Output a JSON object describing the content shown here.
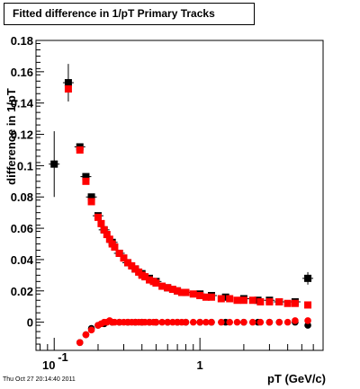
{
  "title": "Fitted difference in 1/pT  Primary Tracks",
  "timestamp": "Thu Oct 27 20:14:40 2011",
  "chart_data": {
    "type": "scatter",
    "title": "Fitted difference in 1/pT  Primary Tracks",
    "xlabel": "pT (GeV/c)",
    "ylabel": "difference in 1/pT",
    "xscale": "log",
    "xlim": [
      0.075,
      7.0
    ],
    "ylim": [
      -0.018,
      0.18
    ],
    "x_tick_labels": [
      {
        "value": 0.1,
        "base": "10",
        "exp": "-1"
      },
      {
        "value": 1,
        "text": "1"
      }
    ],
    "y_ticks": [
      0,
      0.02,
      0.04,
      0.06,
      0.08,
      0.1,
      0.12,
      0.14,
      0.16,
      0.18
    ],
    "y_tick_labels": [
      "0",
      "0.02",
      "0.04",
      "0.06",
      "0.08",
      "0.1",
      "0.12",
      "0.14",
      "0.16",
      "0.18"
    ],
    "grid": false,
    "series": [
      {
        "color": "#000000",
        "marker": "square",
        "x": [
          0.1,
          0.125,
          0.15,
          0.165,
          0.18,
          0.2,
          0.22,
          0.25,
          0.28,
          0.32,
          0.36,
          0.4,
          0.45,
          0.5,
          0.6,
          0.7,
          0.8,
          1.0,
          1.2,
          1.5,
          2.0,
          2.5,
          3.0,
          3.5,
          4.5,
          5.5
        ],
        "y": [
          0.101,
          0.153,
          0.112,
          0.093,
          0.08,
          0.068,
          0.059,
          0.051,
          0.044,
          0.038,
          0.034,
          0.031,
          0.028,
          0.026,
          0.022,
          0.02,
          0.019,
          0.018,
          0.017,
          0.016,
          0.015,
          0.014,
          0.014,
          0.013,
          0.013,
          0.028
        ],
        "yerr": [
          0.021,
          0.012,
          0.002,
          0.002,
          0.001,
          0.001,
          0.001,
          0.001,
          0.001,
          0.001,
          0.001,
          0.001,
          0.001,
          0.001,
          0.001,
          0.001,
          0.001,
          0.001,
          0.001,
          0.001,
          0.001,
          0.001,
          0.001,
          0.001,
          0.002,
          0.004
        ]
      },
      {
        "color": "#ff0000",
        "marker": "square",
        "x": [
          0.125,
          0.15,
          0.165,
          0.18,
          0.2,
          0.21,
          0.22,
          0.23,
          0.24,
          0.25,
          0.26,
          0.28,
          0.3,
          0.32,
          0.34,
          0.36,
          0.38,
          0.4,
          0.42,
          0.45,
          0.48,
          0.5,
          0.55,
          0.6,
          0.65,
          0.7,
          0.75,
          0.8,
          0.9,
          1.0,
          1.1,
          1.2,
          1.4,
          1.6,
          1.8,
          2.0,
          2.3,
          2.6,
          3.0,
          3.5,
          4.0,
          4.5,
          5.5
        ],
        "y": [
          0.149,
          0.11,
          0.09,
          0.077,
          0.067,
          0.063,
          0.059,
          0.056,
          0.053,
          0.05,
          0.048,
          0.044,
          0.041,
          0.038,
          0.036,
          0.034,
          0.032,
          0.03,
          0.029,
          0.027,
          0.026,
          0.025,
          0.023,
          0.022,
          0.021,
          0.02,
          0.019,
          0.019,
          0.018,
          0.017,
          0.016,
          0.016,
          0.015,
          0.015,
          0.014,
          0.014,
          0.014,
          0.013,
          0.013,
          0.013,
          0.012,
          0.012,
          0.011
        ]
      },
      {
        "color": "#000000",
        "marker": "circle",
        "x": [
          0.15,
          0.165,
          0.18,
          0.2,
          0.22,
          0.25,
          0.28,
          0.32,
          0.36,
          0.4,
          0.45,
          0.5,
          0.6,
          0.7,
          0.8,
          1.0,
          1.2,
          1.5,
          2.0,
          2.5,
          3.0,
          3.5,
          4.5,
          5.5
        ],
        "y": [
          -0.013,
          -0.008,
          -0.004,
          -0.002,
          -0.001,
          0.0,
          0.0,
          0.0,
          0.0,
          0.0,
          0.0,
          0.0,
          0.0,
          0.0,
          0.0,
          0.0,
          0.0,
          0.0,
          0.0,
          0.0,
          0.0,
          0.0,
          0.0,
          -0.002
        ]
      },
      {
        "color": "#ff0000",
        "marker": "circle",
        "x": [
          0.15,
          0.165,
          0.18,
          0.2,
          0.21,
          0.22,
          0.23,
          0.24,
          0.25,
          0.26,
          0.28,
          0.3,
          0.32,
          0.34,
          0.36,
          0.38,
          0.4,
          0.42,
          0.45,
          0.48,
          0.5,
          0.55,
          0.6,
          0.65,
          0.7,
          0.75,
          0.8,
          0.9,
          1.0,
          1.1,
          1.2,
          1.4,
          1.6,
          1.8,
          2.0,
          2.3,
          2.6,
          3.0,
          3.5,
          4.0,
          4.5,
          5.5
        ],
        "y": [
          -0.013,
          -0.008,
          -0.005,
          -0.002,
          -0.001,
          0.0,
          0.0,
          0.001,
          0.0,
          0.0,
          0.0,
          0.0,
          0.0,
          0.0,
          0.0,
          0.0,
          0.0,
          0.0,
          0.0,
          0.0,
          0.0,
          0.0,
          0.0,
          0.0,
          0.0,
          0.0,
          0.0,
          0.0,
          0.0,
          0.0,
          0.0,
          0.0,
          0.0,
          0.0,
          0.0,
          0.0,
          0.0,
          0.0,
          0.0,
          0.0,
          0.001,
          0.001
        ]
      }
    ]
  }
}
